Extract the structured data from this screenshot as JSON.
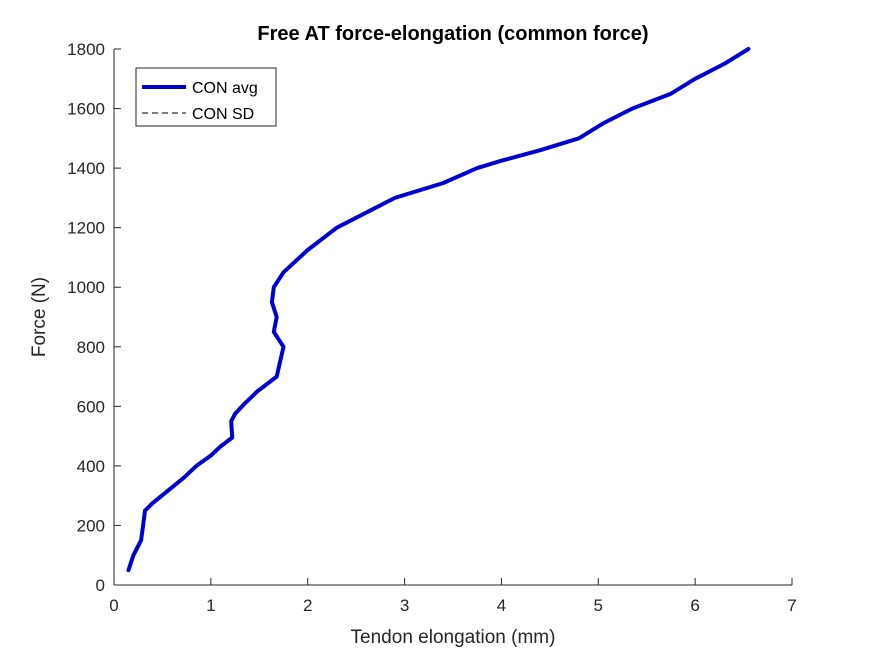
{
  "chart_data": {
    "type": "line",
    "title": "Free AT force-elongation (common force)",
    "xlabel": "Tendon elongation (mm)",
    "ylabel": "Force (N)",
    "xlim": [
      0,
      7
    ],
    "ylim": [
      0,
      1800
    ],
    "xticks": [
      "0",
      "1",
      "2",
      "3",
      "4",
      "5",
      "6",
      "7"
    ],
    "yticks": [
      "0",
      "200",
      "400",
      "600",
      "800",
      "1000",
      "1200",
      "1400",
      "1600",
      "1800"
    ],
    "grid": false,
    "legend_position": "top-left",
    "colors": {
      "avg": "#0000d0",
      "sd": "#000000",
      "axis": "#262626"
    },
    "series": [
      {
        "name": "CON avg",
        "style": "solid-thick",
        "x": [
          0.15,
          0.2,
          0.28,
          0.3,
          0.32,
          0.4,
          0.55,
          0.72,
          0.85,
          1.0,
          1.1,
          1.22,
          1.21,
          1.25,
          1.35,
          1.48,
          1.68,
          1.75,
          1.65,
          1.68,
          1.63,
          1.65,
          1.75,
          2.0,
          2.3,
          2.6,
          2.9,
          3.4,
          3.75,
          4.0,
          4.4,
          4.8,
          5.05,
          5.35,
          5.75,
          6.0,
          6.3,
          6.55
        ],
        "y": [
          50,
          100,
          150,
          200,
          250,
          275,
          315,
          360,
          400,
          435,
          465,
          495,
          550,
          575,
          610,
          650,
          700,
          800,
          850,
          900,
          950,
          1000,
          1050,
          1125,
          1200,
          1250,
          1300,
          1350,
          1400,
          1425,
          1460,
          1500,
          1550,
          1600,
          1650,
          1700,
          1750,
          1800
        ]
      },
      {
        "name": "CON SD",
        "style": "dashed-thin",
        "x": [],
        "y": []
      }
    ]
  }
}
